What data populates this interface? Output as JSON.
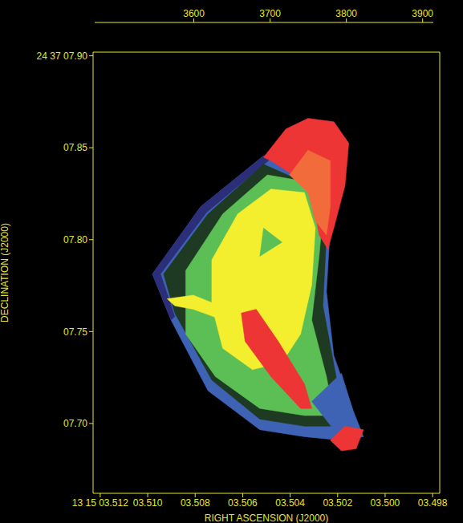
{
  "chart_data": {
    "type": "image",
    "x_label": "RIGHT ASCENSION (J2000)",
    "y_label": "DECLINATION (J2000)",
    "xlim": [
      3.5123,
      3.4977
    ],
    "ylim": [
      7.662,
      7.902
    ],
    "xticks": [
      {
        "value": 3.512,
        "label": "13 15 03.512"
      },
      {
        "value": 3.51,
        "label": "03.510"
      },
      {
        "value": 3.508,
        "label": "03.508"
      },
      {
        "value": 3.506,
        "label": "03.506"
      },
      {
        "value": 3.504,
        "label": "03.504"
      },
      {
        "value": 3.502,
        "label": "03.502"
      },
      {
        "value": 3.5,
        "label": "03.500"
      },
      {
        "value": 3.498,
        "label": "03.498"
      }
    ],
    "yticks": [
      {
        "value": 7.9,
        "label": "24 37 07.90"
      },
      {
        "value": 7.85,
        "label": "07.85"
      },
      {
        "value": 7.8,
        "label": "07.80"
      },
      {
        "value": 7.75,
        "label": "07.75"
      },
      {
        "value": 7.7,
        "label": "07.70"
      }
    ],
    "colorbar": {
      "range": [
        3470,
        3914
      ],
      "ticks": [
        3600,
        3700,
        3800,
        3900
      ],
      "colors": [
        "#282828",
        "#2d2050",
        "#2b2f7a",
        "#3f63b4",
        "#1f3a22",
        "#5cbf56",
        "#f4ef2e",
        "#f26b3a",
        "#ee3535"
      ]
    },
    "regions": [
      {
        "value": 3643,
        "points": [
          [
            3.5098,
            7.7813
          ],
          [
            3.50777,
            7.8179
          ],
          [
            3.50512,
            7.8456
          ],
          [
            3.50418,
            7.8429
          ],
          [
            3.50231,
            7.8063
          ],
          [
            3.50247,
            7.7717
          ],
          [
            3.50216,
            7.737
          ],
          [
            3.50138,
            7.7082
          ],
          [
            3.50091,
            7.6928
          ],
          [
            3.50184,
            7.6908
          ],
          [
            3.5034,
            7.6928
          ],
          [
            3.50528,
            7.6966
          ],
          [
            3.50746,
            7.7178
          ],
          [
            3.50902,
            7.7563
          ]
        ]
      },
      {
        "value": 3593,
        "points": [
          [
            3.5098,
            7.7813
          ],
          [
            3.50777,
            7.8179
          ],
          [
            3.50512,
            7.8456
          ],
          [
            3.50481,
            7.8441
          ],
          [
            3.50752,
            7.8148
          ],
          [
            3.50946,
            7.7813
          ],
          [
            3.50886,
            7.7582
          ],
          [
            3.50902,
            7.7563
          ]
        ]
      },
      {
        "value": 3692,
        "points": [
          [
            3.50933,
            7.7813
          ],
          [
            3.50746,
            7.814
          ],
          [
            3.50512,
            7.841
          ],
          [
            3.50309,
            7.8294
          ],
          [
            3.50247,
            7.8025
          ],
          [
            3.50262,
            7.764
          ],
          [
            3.50184,
            7.7101
          ],
          [
            3.50184,
            7.6985
          ],
          [
            3.5034,
            7.6985
          ],
          [
            3.50528,
            7.7024
          ],
          [
            3.5073,
            7.7236
          ],
          [
            3.50886,
            7.7601
          ]
        ]
      },
      {
        "value": 3741,
        "points": [
          [
            3.5084,
            7.7832
          ],
          [
            3.50684,
            7.814
          ],
          [
            3.50496,
            7.8352
          ],
          [
            3.50325,
            7.8314
          ],
          [
            3.50262,
            7.814
          ],
          [
            3.50278,
            7.7909
          ],
          [
            3.50309,
            7.7563
          ],
          [
            3.50247,
            7.7255
          ],
          [
            3.50216,
            7.7043
          ],
          [
            3.5034,
            7.7043
          ],
          [
            3.50528,
            7.7082
          ],
          [
            3.50715,
            7.7255
          ],
          [
            3.5084,
            7.7486
          ]
        ]
      },
      {
        "value": 3791,
        "points": [
          [
            3.5073,
            7.789
          ],
          [
            3.50621,
            7.814
          ],
          [
            3.50481,
            7.8275
          ],
          [
            3.5034,
            7.8256
          ],
          [
            3.50294,
            7.8063
          ],
          [
            3.50309,
            7.7755
          ],
          [
            3.50356,
            7.7486
          ],
          [
            3.50434,
            7.7332
          ],
          [
            3.50559,
            7.7293
          ],
          [
            3.50684,
            7.7409
          ],
          [
            3.5073,
            7.764
          ]
        ]
      },
      {
        "value": 3741,
        "points": [
          [
            3.50512,
            7.8063
          ],
          [
            3.50434,
            7.7986
          ],
          [
            3.50528,
            7.7909
          ]
        ]
      },
      {
        "value": 3791,
        "points": [
          [
            3.50918,
            7.7678
          ],
          [
            3.50808,
            7.7698
          ],
          [
            3.50621,
            7.7601
          ],
          [
            3.5059,
            7.7563
          ],
          [
            3.50684,
            7.7563
          ],
          [
            3.50808,
            7.7621
          ],
          [
            3.50886,
            7.764
          ]
        ]
      },
      {
        "value": 3889,
        "points": [
          [
            3.50512,
            7.8448
          ],
          [
            3.50418,
            7.8602
          ],
          [
            3.50325,
            7.866
          ],
          [
            3.50216,
            7.8641
          ],
          [
            3.50153,
            7.8525
          ],
          [
            3.50169,
            7.8294
          ],
          [
            3.50216,
            7.8063
          ],
          [
            3.50241,
            7.7948
          ],
          [
            3.50278,
            7.8025
          ],
          [
            3.50309,
            7.8237
          ],
          [
            3.50387,
            7.8352
          ],
          [
            3.50481,
            7.8429
          ]
        ]
      },
      {
        "value": 3840,
        "points": [
          [
            3.50403,
            7.8352
          ],
          [
            3.50325,
            7.8487
          ],
          [
            3.50231,
            7.8429
          ],
          [
            3.50231,
            7.8179
          ],
          [
            3.50247,
            7.8025
          ],
          [
            3.50294,
            7.8102
          ],
          [
            3.50325,
            7.8256
          ]
        ]
      },
      {
        "value": 3889,
        "points": [
          [
            3.50606,
            7.7601
          ],
          [
            3.50543,
            7.7621
          ],
          [
            3.5045,
            7.7447
          ],
          [
            3.5034,
            7.7216
          ],
          [
            3.50309,
            7.7082
          ],
          [
            3.50356,
            7.7082
          ],
          [
            3.50481,
            7.7255
          ],
          [
            3.5059,
            7.7447
          ]
        ]
      },
      {
        "value": 3643,
        "points": [
          [
            3.50309,
            7.712
          ],
          [
            3.50184,
            7.7274
          ],
          [
            3.50138,
            7.7082
          ],
          [
            3.50122,
            7.6985
          ],
          [
            3.50216,
            7.6966
          ]
        ]
      },
      {
        "value": 3889,
        "points": [
          [
            3.50231,
            7.6908
          ],
          [
            3.50169,
            7.6985
          ],
          [
            3.50091,
            7.6966
          ],
          [
            3.50122,
            7.6862
          ],
          [
            3.50184,
            7.6851
          ]
        ]
      }
    ]
  }
}
